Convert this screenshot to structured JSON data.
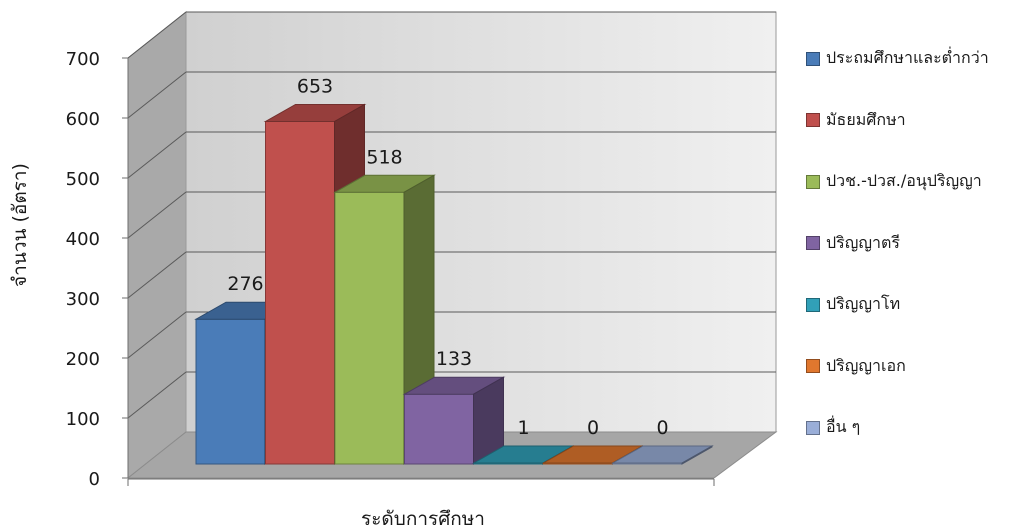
{
  "chart_data": {
    "type": "bar",
    "categories": [
      "ประถมศึกษาและต่ำกว่า",
      "มัธยมศึกษา",
      "ปวช.-ปวส./อนุปริญญา",
      "ปริญญาตรี",
      "ปริญญาโท",
      "ปริญญาเอก",
      "อื่น ๆ"
    ],
    "values": [
      276,
      653,
      518,
      133,
      1,
      0,
      0
    ],
    "data_labels": [
      "276",
      "653",
      "518",
      "133",
      "1",
      "0",
      "0"
    ],
    "colors": [
      "#4a7cb8",
      "#c0504d",
      "#9bbb59",
      "#8064a2",
      "#31a0b8",
      "#e0772e",
      "#9aaed8"
    ],
    "xlabel": "ระดับการศึกษา",
    "ylabel": "จำนวน (อัตรา)",
    "ylim": [
      0,
      700
    ],
    "yticks": [
      "0",
      "100",
      "200",
      "300",
      "400",
      "500",
      "600",
      "700"
    ],
    "grid": true,
    "style": "3d-column",
    "legend_position": "right"
  }
}
